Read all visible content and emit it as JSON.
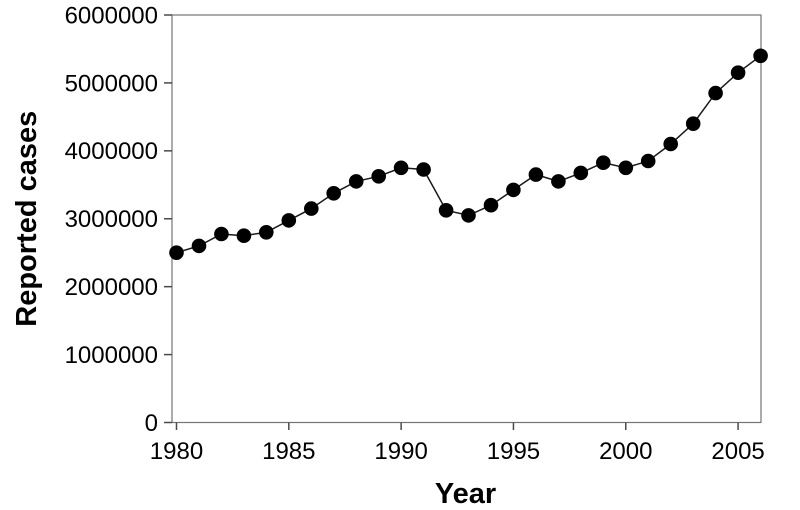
{
  "chart_data": {
    "type": "line",
    "title": "",
    "xlabel": "Year",
    "ylabel": "Reported cases",
    "x": [
      1980,
      1981,
      1982,
      1983,
      1984,
      1985,
      1986,
      1987,
      1988,
      1989,
      1990,
      1991,
      1992,
      1993,
      1994,
      1995,
      1996,
      1997,
      1998,
      1999,
      2000,
      2001,
      2002,
      2003,
      2004,
      2005,
      2006
    ],
    "values": [
      2500000,
      2600000,
      2775000,
      2750000,
      2800000,
      2975000,
      3150000,
      3375000,
      3550000,
      3625000,
      3750000,
      3725000,
      3125000,
      3050000,
      3200000,
      3425000,
      3650000,
      3550000,
      3675000,
      3825000,
      3750000,
      3850000,
      4100000,
      4400000,
      4850000,
      5150000,
      5400000
    ],
    "xticks": [
      1980,
      1985,
      1990,
      1995,
      2000,
      2005
    ],
    "yticks": [
      0,
      1000000,
      2000000,
      3000000,
      4000000,
      5000000,
      6000000
    ],
    "xlim": [
      1979.8,
      2006.02
    ],
    "ylim": [
      0,
      6000000
    ],
    "grid": false,
    "legend": "none",
    "marker_shape": "circle",
    "marker_color": "#000000",
    "line_color": "#1a1a1a",
    "frame_color": "#757575",
    "tick_color": "#4a4a4a",
    "text_color": "#000000",
    "background_color": "#ffffff"
  }
}
